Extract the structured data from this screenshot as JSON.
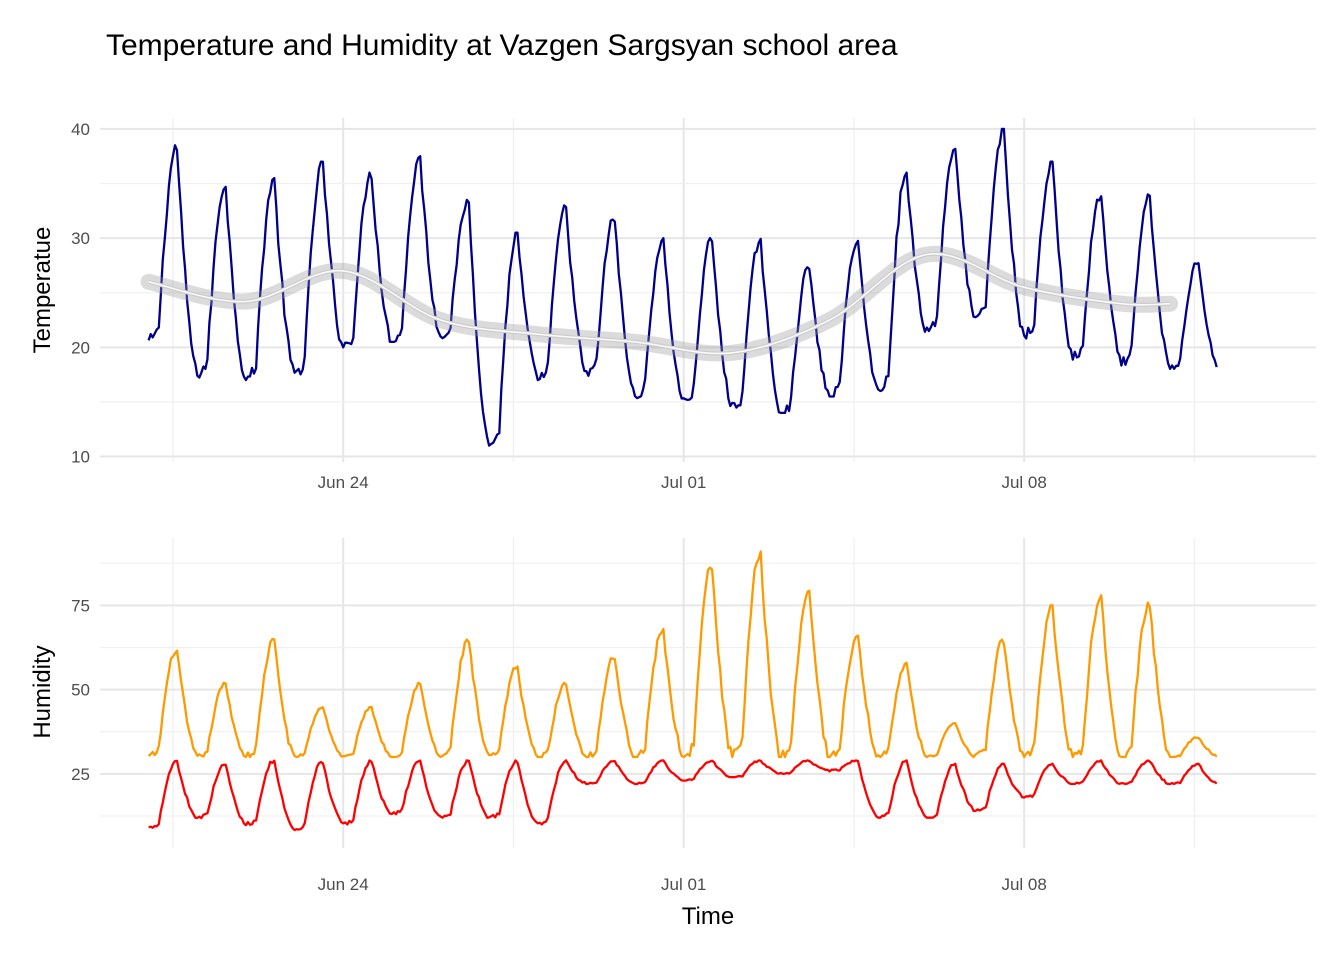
{
  "figure": {
    "title": "Temperature and Humidity at Vazgen Sargsyan school area"
  },
  "chart_data": [
    {
      "type": "line",
      "panel": "temperature",
      "title": "Temperature and Humidity at Vazgen Sargsyan school area",
      "xlabel": "",
      "ylabel": "Temperatue",
      "x_start": "2024-06-20",
      "x_end": "2024-07-11",
      "xlim": [
        "2024-06-19",
        "2024-07-14"
      ],
      "ylim": [
        9.5,
        41
      ],
      "x_ticks": [
        {
          "date": "2024-06-24",
          "label": "Jun 24"
        },
        {
          "date": "2024-07-01",
          "label": "Jul 01"
        },
        {
          "date": "2024-07-08",
          "label": "Jul 08"
        }
      ],
      "y_ticks": [
        10,
        20,
        30,
        40
      ],
      "grid": true,
      "series": [
        {
          "color": "#00008b",
          "daily_peaks": [
            38.5,
            35.0,
            35.5,
            37.0,
            36.0,
            37.5,
            33.5,
            30.5,
            33.0,
            32.0,
            30.0,
            30.0,
            30.0,
            27.5,
            30.0,
            36.0,
            38.5,
            40.0,
            37.0,
            34.0,
            34.0,
            28.0
          ],
          "daily_lows": [
            20.5,
            17.5,
            17.0,
            17.5,
            20.0,
            20.5,
            21.0,
            11.0,
            17.0,
            17.5,
            15.5,
            15.0,
            14.5,
            14.0,
            15.5,
            16.0,
            21.5,
            22.5,
            21.0,
            19.0,
            18.5,
            18.0
          ]
        },
        {
          "name": "smooth trend",
          "color": "#cccccc",
          "x": [
            "2024-06-20",
            "2024-06-22",
            "2024-06-24",
            "2024-06-26",
            "2024-06-28",
            "2024-06-30",
            "2024-07-02",
            "2024-07-04",
            "2024-07-06",
            "2024-07-08",
            "2024-07-10",
            "2024-07-11"
          ],
          "y": [
            26.0,
            24.2,
            27.0,
            22.5,
            21.2,
            20.5,
            19.5,
            22.5,
            28.5,
            25.5,
            24.0,
            24.0
          ]
        }
      ]
    },
    {
      "type": "line",
      "panel": "humidity",
      "xlabel": "Time",
      "ylabel": "Humidity",
      "x_start": "2024-06-20",
      "x_end": "2024-07-11",
      "xlim": [
        "2024-06-19",
        "2024-07-14"
      ],
      "ylim": [
        3,
        95
      ],
      "x_ticks": [
        {
          "date": "2024-06-24",
          "label": "Jun 24"
        },
        {
          "date": "2024-07-01",
          "label": "Jul 01"
        },
        {
          "date": "2024-07-08",
          "label": "Jul 08"
        }
      ],
      "y_ticks": [
        25,
        50,
        75
      ],
      "grid": true,
      "series": [
        {
          "color": "#ff9900",
          "daily_peaks": [
            62,
            52,
            65,
            45,
            45,
            52,
            65,
            57,
            52,
            60,
            68,
            87,
            91,
            80,
            66,
            58,
            40,
            65,
            75,
            78,
            76,
            36
          ],
          "daily_lows": [
            30,
            30,
            30,
            30,
            30,
            30,
            30,
            30,
            30,
            30,
            30,
            30,
            30,
            30,
            30,
            30,
            30,
            30,
            30,
            30,
            30,
            30
          ]
        },
        {
          "color": "#ff0000",
          "daily_peaks": [
            29,
            28,
            29,
            29,
            29,
            29,
            29,
            29,
            29,
            29,
            29,
            29,
            29,
            29,
            29,
            29,
            28,
            28,
            28,
            29,
            29,
            28
          ],
          "daily_lows": [
            9,
            12,
            10,
            8,
            10,
            13,
            12,
            12,
            10,
            22,
            22,
            23,
            24,
            25,
            26,
            12,
            12,
            14,
            18,
            22,
            22,
            22
          ]
        }
      ]
    }
  ]
}
